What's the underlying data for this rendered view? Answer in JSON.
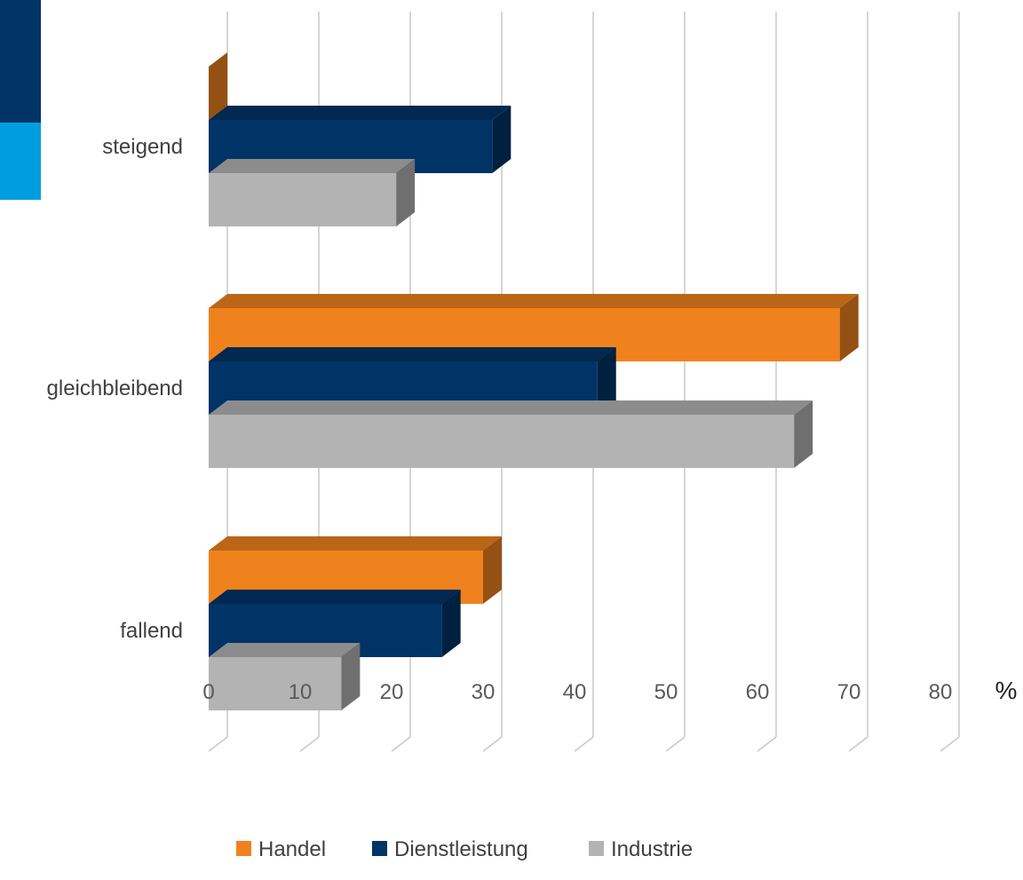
{
  "brand": {
    "accent_colors": [
      "#003366",
      "#009ee0"
    ]
  },
  "chart_data": {
    "type": "bar",
    "orientation": "horizontal",
    "style": "3d",
    "categories": [
      "steigend",
      "gleichbleibend",
      "fallend"
    ],
    "series": [
      {
        "name": "Handel",
        "color": "#f0821e",
        "values": [
          0,
          69,
          30
        ]
      },
      {
        "name": "Dienstleistung",
        "color": "#003366",
        "values": [
          31,
          42.5,
          25.5
        ]
      },
      {
        "name": "Industrie",
        "color": "#b3b3b3",
        "values": [
          20.5,
          64,
          14.5
        ]
      }
    ],
    "xlim": [
      0,
      80
    ],
    "xticks": [
      0,
      10,
      20,
      30,
      40,
      50,
      60,
      70,
      80
    ],
    "xunit": "%",
    "grid": true,
    "legend": "bottom"
  }
}
